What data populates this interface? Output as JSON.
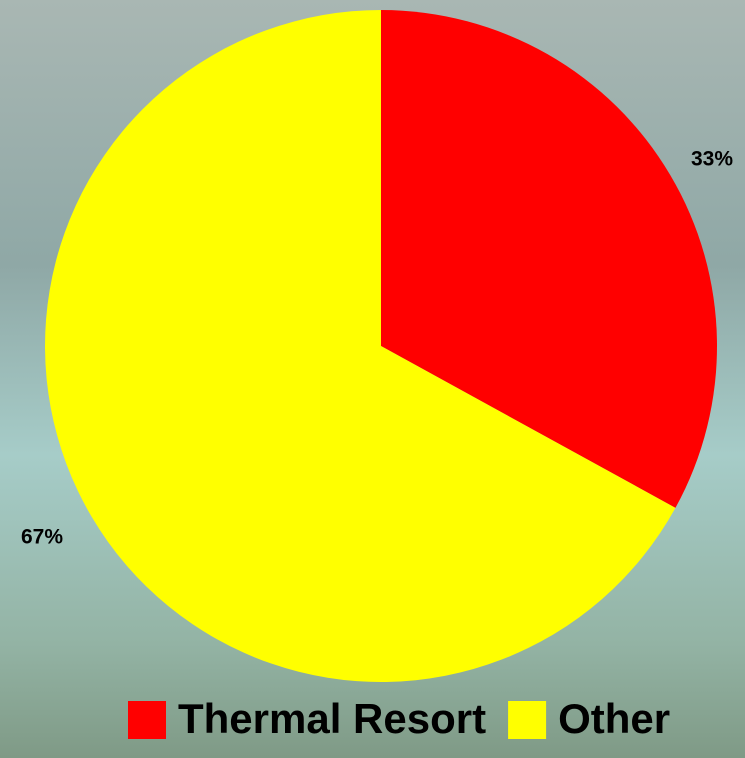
{
  "chart_data": {
    "type": "pie",
    "categories": [
      "Thermal Resort",
      "Other"
    ],
    "values": [
      33,
      67
    ],
    "value_labels": [
      "33%",
      "67%"
    ],
    "colors": [
      "#ff0000",
      "#ffff00"
    ],
    "legend": "bottom"
  }
}
